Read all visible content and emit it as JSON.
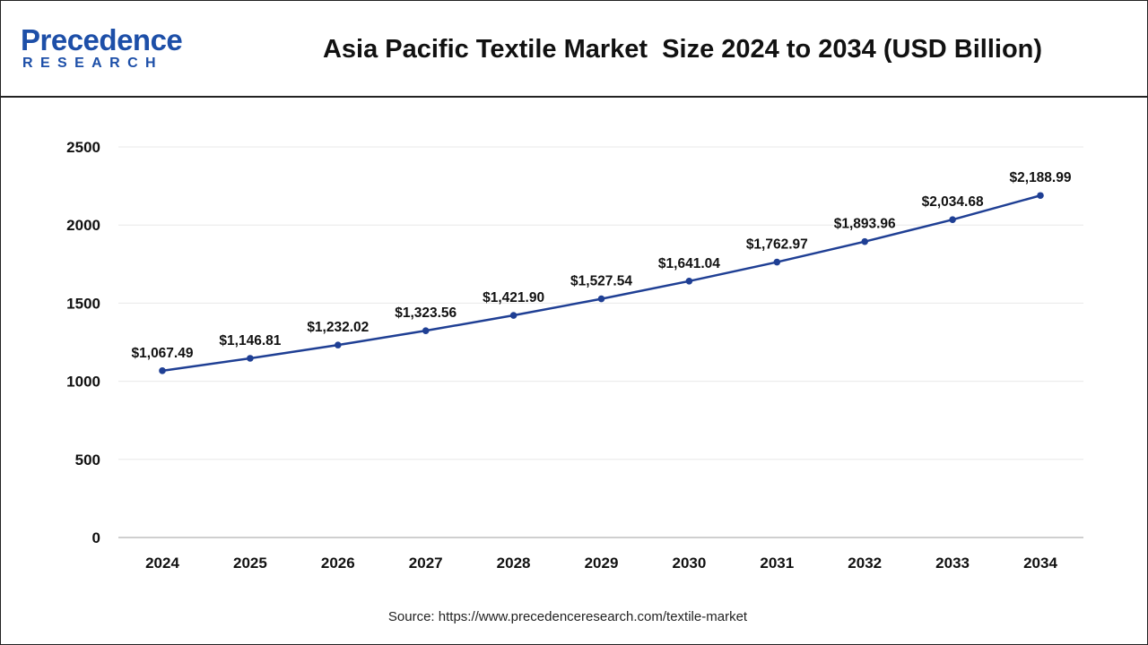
{
  "logo": {
    "word": "Precedence",
    "sub": "RESEARCH"
  },
  "source": "Source: https://www.precedenceresearch.com/textile-market",
  "colors": {
    "line": "#1f3f94",
    "marker": "#1f3f94",
    "grid": "#e8e8e8",
    "logo": "#1d4fa8"
  },
  "chart_data": {
    "type": "line",
    "title": "Asia Pacific Textile Market  Size 2024 to 2034 (USD Billion)",
    "xlabel": "",
    "ylabel": "",
    "categories": [
      "2024",
      "2025",
      "2026",
      "2027",
      "2028",
      "2029",
      "2030",
      "2031",
      "2032",
      "2033",
      "2034"
    ],
    "values": [
      1067.49,
      1146.81,
      1232.02,
      1323.56,
      1421.9,
      1527.54,
      1641.04,
      1762.97,
      1893.96,
      2034.68,
      2188.99
    ],
    "data_labels": [
      "$1,067.49",
      "$1,146.81",
      "$1,232.02",
      "$1,323.56",
      "$1,421.90",
      "$1,527.54",
      "$1,641.04",
      "$1,762.97",
      "$1,893.96",
      "$2,034.68",
      "$2,188.99"
    ],
    "ylim": [
      0,
      2500
    ],
    "yticks": [
      0,
      500,
      1000,
      1500,
      2000,
      2500
    ],
    "grid": true,
    "legend": "none"
  }
}
